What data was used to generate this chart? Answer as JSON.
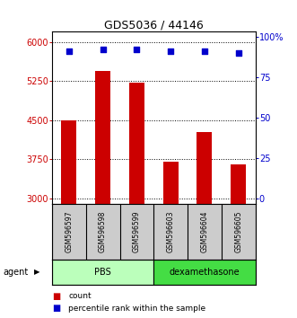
{
  "title": "GDS5036 / 44146",
  "samples": [
    "GSM596597",
    "GSM596598",
    "GSM596599",
    "GSM596603",
    "GSM596604",
    "GSM596605"
  ],
  "counts": [
    4490,
    5440,
    5220,
    3700,
    4280,
    3660
  ],
  "percentile_ranks": [
    91,
    92,
    92,
    91,
    91,
    90
  ],
  "ylim_left": [
    2900,
    6200
  ],
  "ylim_right": [
    -3,
    103
  ],
  "yticks_left": [
    3000,
    3750,
    4500,
    5250,
    6000
  ],
  "ytick_labels_left": [
    "3000",
    "3750",
    "4500",
    "5250",
    "6000"
  ],
  "yticks_right": [
    0,
    25,
    50,
    75,
    100
  ],
  "ytick_labels_right": [
    "0",
    "25",
    "50",
    "75",
    "100%"
  ],
  "bar_color": "#cc0000",
  "dot_color": "#0000cc",
  "bar_width": 0.45,
  "groups": [
    {
      "label": "PBS",
      "indices": [
        0,
        1,
        2
      ],
      "color": "#bbffbb"
    },
    {
      "label": "dexamethasone",
      "indices": [
        3,
        4,
        5
      ],
      "color": "#44dd44"
    }
  ],
  "agent_label": "agent",
  "legend_count_label": "count",
  "legend_percentile_label": "percentile rank within the sample",
  "sample_bg_color": "#cccccc",
  "plot_bg_color": "#ffffff"
}
